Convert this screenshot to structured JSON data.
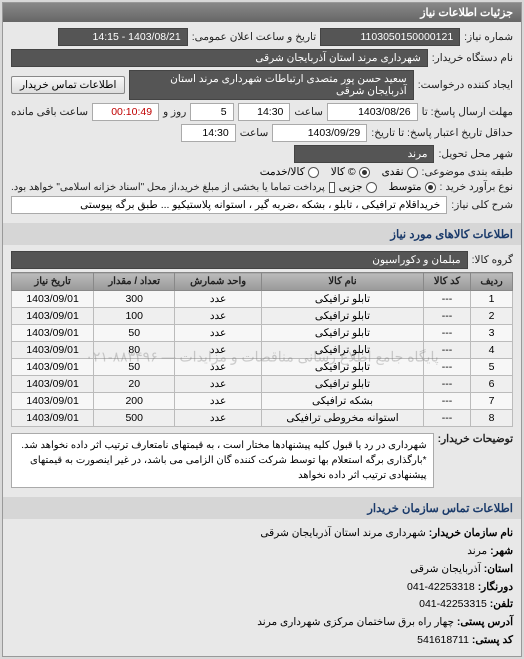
{
  "panel_title": "جزئیات اطلاعات نیاز",
  "header": {
    "req_number_label": "شماره نیاز:",
    "req_number": "1103050150000121",
    "announce_label": "تاریخ و ساعت اعلان عمومی:",
    "announce_value": "1403/08/21 - 14:15",
    "buyer_org_label": "نام دستگاه خریدار:",
    "buyer_org": "شهرداری مرند استان آذربایجان شرقی",
    "requester_label": "ایجاد کننده درخواست:",
    "requester": "سعید حسن پور متصدی ارتباطات شهرداری مرند استان آذربایجان شرقی",
    "contact_btn": "اطلاعات تماس خریدار",
    "deadline_send_label": "مهلت ارسال پاسخ: تا",
    "deadline_send_date": "1403/08/26",
    "time_label": "ساعت",
    "deadline_send_time": "14:30",
    "days_label": "روز و",
    "days_value": "5",
    "remain_label": "ساعت باقی مانده",
    "remain_value": "00:10:49",
    "validity_label": "حداقل تاریخ اعتبار پاسخ: تا تاریخ:",
    "validity_date": "1403/09/29",
    "validity_time": "14:30",
    "delivery_city_label": "شهر محل تحویل:",
    "delivery_city": "مرند",
    "budget_label": "طبقه بندی موضوعی:",
    "budget_options": {
      "cash": "نقدی",
      "goods": "© کالا",
      "credit": "کالا/خدمت"
    },
    "budget_value_label": "نوع برآورد خرید :",
    "budget_type_options": {
      "small": "متوسط",
      "medium": "جزیی"
    },
    "payment_note": "پرداخت تماما یا بخشی از مبلغ خرید،از محل \"اسناد خزانه اسلامی\" خواهد بود.",
    "desc_label": "شرح کلی نیاز:",
    "desc_value": "خریداقلام ترافیکی  ، تابلو ، بشکه  ،ضربه گیر ، استوانه  پلاستیکیو ... طبق برگه پیوستی"
  },
  "items_section": {
    "title": "اطلاعات کالاهای مورد نیاز",
    "group_label": "گروه کالا:",
    "group_value": "مبلمان و دکوراسیون",
    "columns": {
      "row": "ردیف",
      "code": "کد کالا",
      "name": "نام کالا",
      "unit": "واحد شمارش",
      "qty": "تعداد / مقدار",
      "need_date": "تاریخ نیاز"
    },
    "rows": [
      {
        "n": 1,
        "code": "---",
        "name": "تابلو ترافیکی",
        "unit": "عدد",
        "qty": 300,
        "date": "1403/09/01"
      },
      {
        "n": 2,
        "code": "---",
        "name": "تابلو ترافیکی",
        "unit": "عدد",
        "qty": 100,
        "date": "1403/09/01"
      },
      {
        "n": 3,
        "code": "---",
        "name": "تابلو ترافیکی",
        "unit": "عدد",
        "qty": 50,
        "date": "1403/09/01"
      },
      {
        "n": 4,
        "code": "---",
        "name": "تابلو ترافیکی",
        "unit": "عدد",
        "qty": 80,
        "date": "1403/09/01"
      },
      {
        "n": 5,
        "code": "---",
        "name": "تابلو ترافیکی",
        "unit": "عدد",
        "qty": 50,
        "date": "1403/09/01"
      },
      {
        "n": 6,
        "code": "---",
        "name": "تابلو ترافیکی",
        "unit": "عدد",
        "qty": 20,
        "date": "1403/09/01"
      },
      {
        "n": 7,
        "code": "---",
        "name": "بشکه ترافیکی",
        "unit": "عدد",
        "qty": 200,
        "date": "1403/09/01"
      },
      {
        "n": 8,
        "code": "---",
        "name": "استوانه مخروطی ترافیکی",
        "unit": "عدد",
        "qty": 500,
        "date": "1403/09/01"
      }
    ],
    "watermark": "پایگاه جامع اطلاع رسانی مناقصات و مزایدات — ۸۸۳۴۹۶-۰۲۱",
    "note_label": "توضیحات خریدار:",
    "note_text": "شهرداری در رد یا قبول کلیه پیشنهادها مختار است ، به قیمتهای نامتعارف ترتیب اثر داده نخواهد شد.  *بارگذاری برگه استعلام بها توسط شرکت کننده گان الزامی می باشد، در غیر اینصورت به قیمتهای پیشنهادی ترتیب اثر داده نخواهد"
  },
  "contact": {
    "title": "اطلاعات تماس سازمان خریدار",
    "org_label": "نام سازمان خریدار:",
    "org": "شهرداری مرند استان آذربایجان شرقی",
    "city_label": "شهر:",
    "city": "مرند",
    "province_label": "استان:",
    "province": "آذربایجان شرقی",
    "fax_label": "دورنگار:",
    "fax": "42253318-041",
    "phone_label": "تلفن:",
    "phone": "42253315-041",
    "address_label": "آدرس پستی:",
    "address": "چهار راه برق ساختمان مرکزی شهرداری مرند",
    "postal_label": "کد پستی:",
    "postal": "541618711"
  },
  "colors": {
    "header_bg": "#777777",
    "header_text": "#ffffff",
    "dark_box": "#555555",
    "border": "#999999"
  }
}
